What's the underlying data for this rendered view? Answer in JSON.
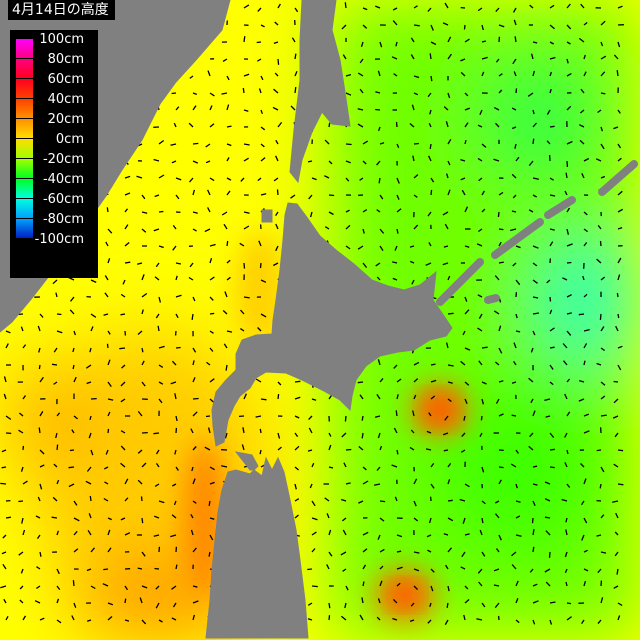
{
  "title": "4月14日の高度",
  "legend": {
    "items": [
      {
        "label": "100cm",
        "color": "#ff00ff"
      },
      {
        "label": "80cm",
        "color": "#ff0080"
      },
      {
        "label": "60cm",
        "color": "#ff0020"
      },
      {
        "label": "40cm",
        "color": "#ff4000"
      },
      {
        "label": "20cm",
        "color": "#ff9000"
      },
      {
        "label": "0cm",
        "color": "#ffdd00"
      },
      {
        "label": "-20cm",
        "color": "#a0ff00"
      },
      {
        "label": "-40cm",
        "color": "#00ff20"
      },
      {
        "label": "-60cm",
        "color": "#00ffe0"
      },
      {
        "label": "-80cm",
        "color": "#00a0ff"
      },
      {
        "label": "-100cm",
        "color": "#0020c0"
      }
    ]
  },
  "colors": {
    "land": "#808080",
    "coast": "#ffffff",
    "arrows": "#000000"
  }
}
